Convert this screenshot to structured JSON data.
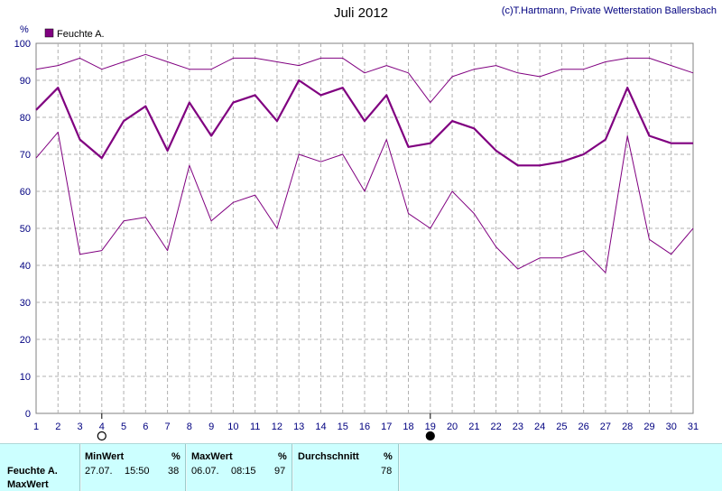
{
  "header": {
    "title": "Juli 2012",
    "copyright": "(c)T.Hartmann, Private Wetterstation Ballersbach"
  },
  "colors": {
    "series": "#800080",
    "grid": "#b0b0b0",
    "footer_bg": "#ccffff"
  },
  "icons": {
    "day_4": "new-moon-outline-icon",
    "day_19": "full-moon-filled-icon"
  },
  "chart_data": {
    "type": "line",
    "legend": [
      "Feuchte A."
    ],
    "legend_position": "top-left",
    "y_unit": "%",
    "ylim": [
      0,
      100
    ],
    "yticks": [
      0,
      10,
      20,
      30,
      40,
      50,
      60,
      70,
      80,
      90,
      100
    ],
    "x": [
      1,
      2,
      3,
      4,
      5,
      6,
      7,
      8,
      9,
      10,
      11,
      12,
      13,
      14,
      15,
      16,
      17,
      18,
      19,
      20,
      21,
      22,
      23,
      24,
      25,
      26,
      27,
      28,
      29,
      30,
      31
    ],
    "grid": true,
    "moon_markers": [
      {
        "day": 4,
        "phase": "outline"
      },
      {
        "day": 19,
        "phase": "filled"
      }
    ],
    "series": [
      {
        "name": "Feuchte A.",
        "role": "max",
        "values": [
          93,
          94,
          96,
          93,
          95,
          97,
          95,
          93,
          93,
          96,
          96,
          95,
          94,
          96,
          96,
          92,
          94,
          92,
          84,
          91,
          93,
          94,
          92,
          91,
          93,
          93,
          95,
          96,
          96,
          94,
          92
        ]
      },
      {
        "name": "Feuchte A.",
        "role": "mean",
        "values": [
          82,
          88,
          74,
          69,
          79,
          83,
          71,
          84,
          75,
          84,
          86,
          79,
          90,
          86,
          88,
          79,
          86,
          72,
          73,
          79,
          77,
          71,
          67,
          67,
          68,
          70,
          74,
          88,
          75,
          73,
          73
        ]
      },
      {
        "name": "Feuchte A.",
        "role": "min",
        "values": [
          69,
          76,
          43,
          44,
          52,
          53,
          44,
          67,
          52,
          57,
          59,
          50,
          70,
          68,
          70,
          60,
          74,
          54,
          50,
          60,
          54,
          45,
          39,
          42,
          42,
          44,
          38,
          75,
          47,
          43,
          50
        ]
      }
    ]
  },
  "footer": {
    "row_label": "Feuchte A.",
    "row_label2": "MaxWert",
    "min": {
      "header": "MinWert",
      "unit": "%",
      "date": "27.07.",
      "time": "15:50",
      "value": "38"
    },
    "max": {
      "header": "MaxWert",
      "unit": "%",
      "date": "06.07.",
      "time": "08:15",
      "value": "97"
    },
    "avg": {
      "header": "Durchschnitt",
      "unit": "%",
      "value": "78"
    }
  }
}
